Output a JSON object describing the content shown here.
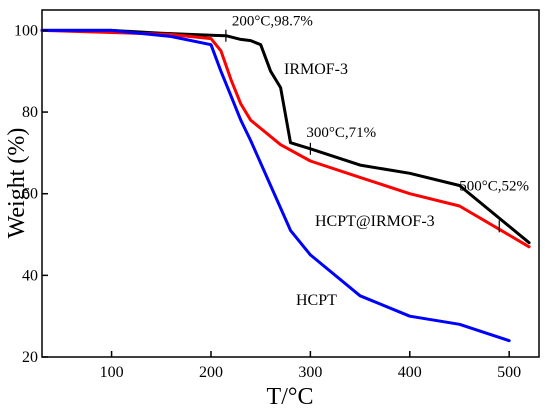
{
  "chart_data": {
    "type": "line",
    "title": "",
    "xlabel": "T/°C",
    "ylabel": "Weight (%)",
    "xlim": [
      30,
      530
    ],
    "ylim": [
      20,
      105
    ],
    "xticks": [
      100,
      200,
      300,
      400,
      500
    ],
    "yticks": [
      20,
      40,
      60,
      80,
      100
    ],
    "grid": false,
    "legend": "none",
    "series": [
      {
        "name": "IRMOF-3",
        "color": "#000000",
        "x": [
          30,
          100,
          150,
          200,
          215,
          230,
          240,
          250,
          260,
          270,
          280,
          300,
          350,
          400,
          450,
          520
        ],
        "y": [
          100,
          100,
          99.3,
          98.8,
          98.7,
          97.8,
          97.5,
          96.5,
          90,
          86,
          72.5,
          71,
          67,
          65,
          62,
          48
        ]
      },
      {
        "name": "HCPT@IRMOF-3",
        "color": "#ff0000",
        "x": [
          30,
          100,
          160,
          200,
          210,
          220,
          230,
          240,
          270,
          300,
          350,
          400,
          450,
          520
        ],
        "y": [
          100,
          99.5,
          99,
          98,
          95,
          88,
          82,
          78,
          72,
          68,
          64,
          60,
          57,
          47
        ]
      },
      {
        "name": "HCPT",
        "color": "#0000ff",
        "x": [
          30,
          100,
          160,
          200,
          210,
          220,
          230,
          240,
          260,
          280,
          300,
          350,
          400,
          450,
          500
        ],
        "y": [
          100,
          100,
          98.5,
          96.5,
          90,
          84,
          78,
          73,
          62,
          51,
          45,
          35,
          30,
          28,
          24
        ]
      }
    ],
    "annotations": [
      {
        "text": "200°C,98.7%",
        "x": 215,
        "y": 98.7
      },
      {
        "text": "300°C,71%",
        "x": 300,
        "y": 71
      },
      {
        "text": "500°C,52%",
        "x": 490,
        "y": 52
      }
    ]
  }
}
